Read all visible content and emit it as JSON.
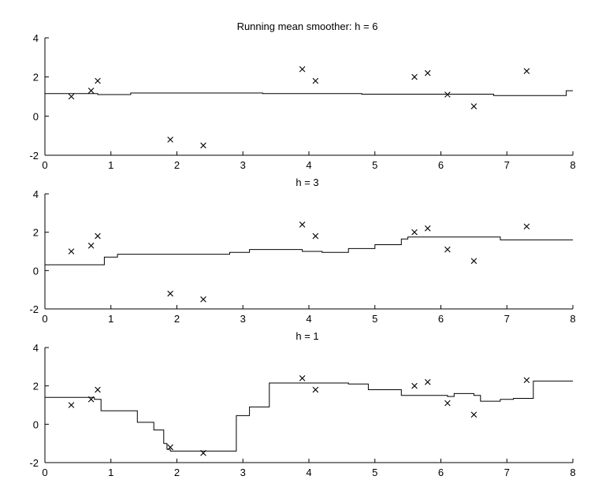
{
  "chart_data": [
    {
      "type": "line",
      "title": "Running mean smoother: h = 6",
      "xlim": [
        0,
        8
      ],
      "ylim": [
        -2,
        4
      ],
      "xticks": [
        "0",
        "1",
        "2",
        "3",
        "4",
        "5",
        "6",
        "7",
        "8"
      ],
      "yticks": [
        "-2",
        "0",
        "2",
        "4"
      ],
      "points": {
        "x": [
          0.4,
          0.7,
          0.8,
          1.9,
          2.4,
          3.9,
          4.1,
          5.6,
          5.8,
          6.1,
          6.5,
          7.3
        ],
        "y": [
          1.0,
          1.3,
          1.8,
          -1.2,
          -1.5,
          2.4,
          1.8,
          2.0,
          2.2,
          1.1,
          0.5,
          2.3
        ]
      },
      "smoother": {
        "x": [
          0,
          0.8,
          1.3,
          3.3,
          4.8,
          5.5,
          6.8,
          7.9,
          8.0
        ],
        "y": [
          1.15,
          1.1,
          1.18,
          1.15,
          1.12,
          1.12,
          1.05,
          1.3,
          1.3
        ]
      }
    },
    {
      "type": "line",
      "title": "h = 3",
      "xlim": [
        0,
        8
      ],
      "ylim": [
        -2,
        4
      ],
      "xticks": [
        "0",
        "1",
        "2",
        "3",
        "4",
        "5",
        "6",
        "7",
        "8"
      ],
      "yticks": [
        "-2",
        "0",
        "2",
        "4"
      ],
      "points": {
        "x": [
          0.4,
          0.7,
          0.8,
          1.9,
          2.4,
          3.9,
          4.1,
          5.6,
          5.8,
          6.1,
          6.5,
          7.3
        ],
        "y": [
          1.0,
          1.3,
          1.8,
          -1.2,
          -1.5,
          2.4,
          1.8,
          2.0,
          2.2,
          1.1,
          0.5,
          2.3
        ]
      },
      "smoother": {
        "x": [
          0,
          0.9,
          1.0,
          1.1,
          2.6,
          2.8,
          3.1,
          3.9,
          4.2,
          4.6,
          5.0,
          5.4,
          5.5,
          6.9,
          8.0
        ],
        "y": [
          0.3,
          0.7,
          0.7,
          0.85,
          0.85,
          0.95,
          1.1,
          1.0,
          0.95,
          1.15,
          1.35,
          1.65,
          1.75,
          1.6,
          1.6
        ]
      }
    },
    {
      "type": "line",
      "title": "h = 1",
      "xlim": [
        0,
        8
      ],
      "ylim": [
        -2,
        4
      ],
      "xticks": [
        "0",
        "1",
        "2",
        "3",
        "4",
        "5",
        "6",
        "7",
        "8"
      ],
      "yticks": [
        "-2",
        "0",
        "2",
        "4"
      ],
      "points": {
        "x": [
          0.4,
          0.7,
          0.8,
          1.9,
          2.4,
          3.9,
          4.1,
          5.6,
          5.8,
          6.1,
          6.5,
          7.3
        ],
        "y": [
          1.0,
          1.3,
          1.8,
          -1.2,
          -1.5,
          2.4,
          1.8,
          2.0,
          2.2,
          1.1,
          0.5,
          2.3
        ]
      },
      "smoother": {
        "x": [
          0,
          0.55,
          0.75,
          0.85,
          1.4,
          1.65,
          1.8,
          1.85,
          1.9,
          2.9,
          3.1,
          3.4,
          4.6,
          4.9,
          5.4,
          6.1,
          6.2,
          6.5,
          6.6,
          6.9,
          7.1,
          7.4,
          8.0
        ],
        "y": [
          1.4,
          1.4,
          1.3,
          0.7,
          0.1,
          -0.3,
          -1.0,
          -1.3,
          -1.4,
          0.45,
          0.9,
          2.15,
          2.1,
          1.8,
          1.5,
          1.45,
          1.6,
          1.5,
          1.2,
          1.3,
          1.35,
          2.25,
          2.25
        ]
      }
    }
  ]
}
